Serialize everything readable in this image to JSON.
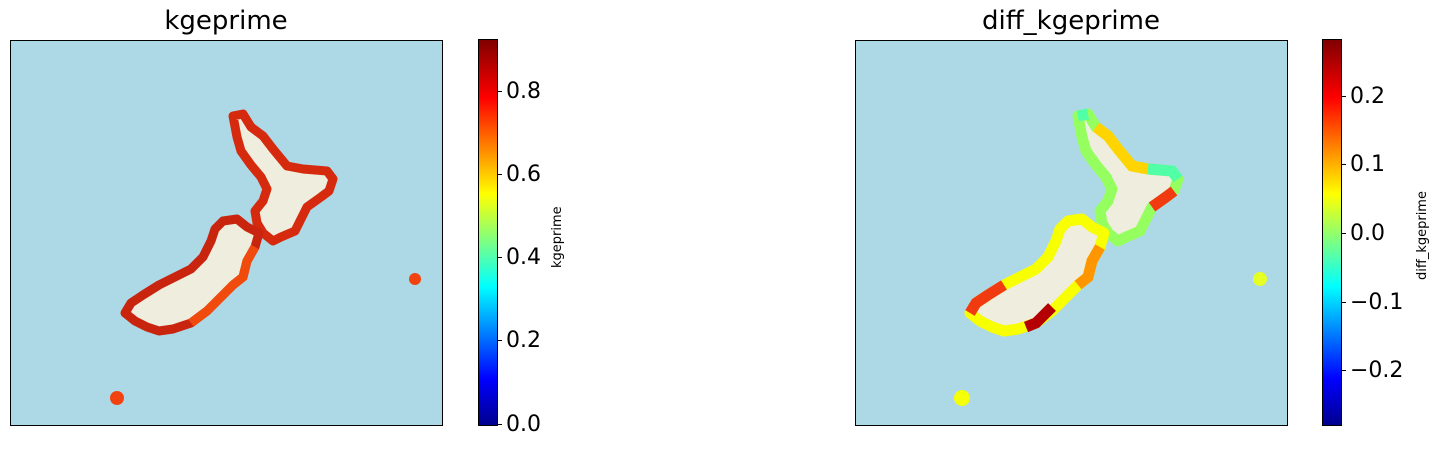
{
  "colors": {
    "ocean": "#add8e6",
    "land": "#efedde"
  },
  "left_panel": {
    "title": "kgeprime",
    "colorbar_label": "kgeprime",
    "colorbar_range": [
      0.0,
      0.92
    ],
    "ticks": [
      "0.0",
      "0.2",
      "0.4",
      "0.6",
      "0.8"
    ],
    "tick_values": [
      0.0,
      0.2,
      0.4,
      0.6,
      0.8
    ],
    "colormap": "jet"
  },
  "right_panel": {
    "title": "diff_kgeprime",
    "colorbar_label": "diff_kgeprime",
    "colorbar_range": [
      -0.28,
      0.28
    ],
    "ticks": [
      "−0.2",
      "−0.1",
      "0.0",
      "0.1",
      "0.2"
    ],
    "tick_values": [
      -0.2,
      -0.1,
      0.0,
      0.1,
      0.2
    ],
    "colormap": "jet"
  }
}
